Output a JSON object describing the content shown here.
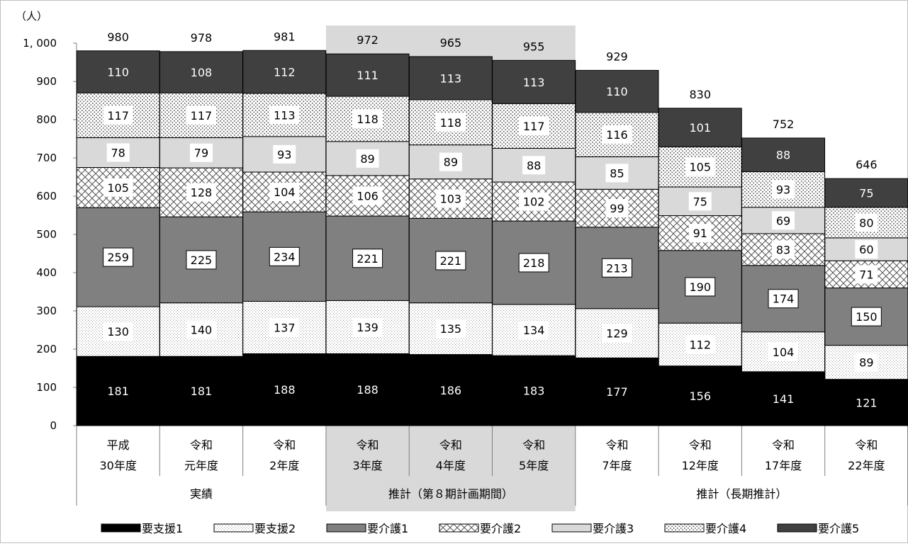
{
  "chart_data": {
    "type": "bar",
    "stacked": true,
    "unit": "（人）",
    "ylim": [
      0,
      1000
    ],
    "y_ticks": [
      "0",
      "100",
      "200",
      "300",
      "400",
      "500",
      "600",
      "700",
      "800",
      "900",
      "1, 000"
    ],
    "categories": [
      [
        "平成",
        "30年度"
      ],
      [
        "令和",
        "元年度"
      ],
      [
        "令和",
        "2年度"
      ],
      [
        "令和",
        "3年度"
      ],
      [
        "令和",
        "4年度"
      ],
      [
        "令和",
        "5年度"
      ],
      [
        "令和",
        "7年度"
      ],
      [
        "令和",
        "12年度"
      ],
      [
        "令和",
        "17年度"
      ],
      [
        "令和",
        "22年度"
      ]
    ],
    "groups": [
      {
        "label": "実績",
        "start": 0,
        "end": 2,
        "highlight": false
      },
      {
        "label": "推計（第８期計画期間）",
        "start": 3,
        "end": 5,
        "highlight": true
      },
      {
        "label": "推計（長期推計）",
        "start": 6,
        "end": 9,
        "highlight": false
      }
    ],
    "series": [
      {
        "name": "要支援1",
        "pattern": "solid-black",
        "values": [
          181,
          181,
          188,
          188,
          186,
          183,
          177,
          156,
          141,
          121
        ]
      },
      {
        "name": "要支援2",
        "pattern": "fine-dots",
        "values": [
          130,
          140,
          137,
          139,
          135,
          134,
          129,
          112,
          104,
          89
        ]
      },
      {
        "name": "要介護1",
        "pattern": "solid-gray",
        "values": [
          259,
          225,
          234,
          221,
          221,
          218,
          213,
          190,
          174,
          150
        ]
      },
      {
        "name": "要介護2",
        "pattern": "crosshatch",
        "values": [
          105,
          128,
          104,
          106,
          103,
          102,
          99,
          91,
          83,
          71
        ]
      },
      {
        "name": "要介護3",
        "pattern": "light-gray",
        "values": [
          78,
          79,
          93,
          89,
          89,
          88,
          85,
          75,
          69,
          60
        ]
      },
      {
        "name": "要介護4",
        "pattern": "dots",
        "values": [
          117,
          117,
          113,
          118,
          118,
          117,
          116,
          105,
          93,
          80
        ]
      },
      {
        "name": "要介護5",
        "pattern": "dark-gray",
        "values": [
          110,
          108,
          112,
          111,
          113,
          113,
          110,
          101,
          88,
          75
        ]
      }
    ],
    "totals": [
      980,
      978,
      981,
      972,
      965,
      955,
      929,
      830,
      752,
      646
    ],
    "colors": {
      "solid-black": "#000000",
      "solid-gray": "#808080",
      "light-gray": "#d9d9d9",
      "dark-gray": "#404040",
      "highlight": "#d9d9d9",
      "border": "#bfbfbf"
    },
    "legend_position": "bottom",
    "grid": false
  }
}
